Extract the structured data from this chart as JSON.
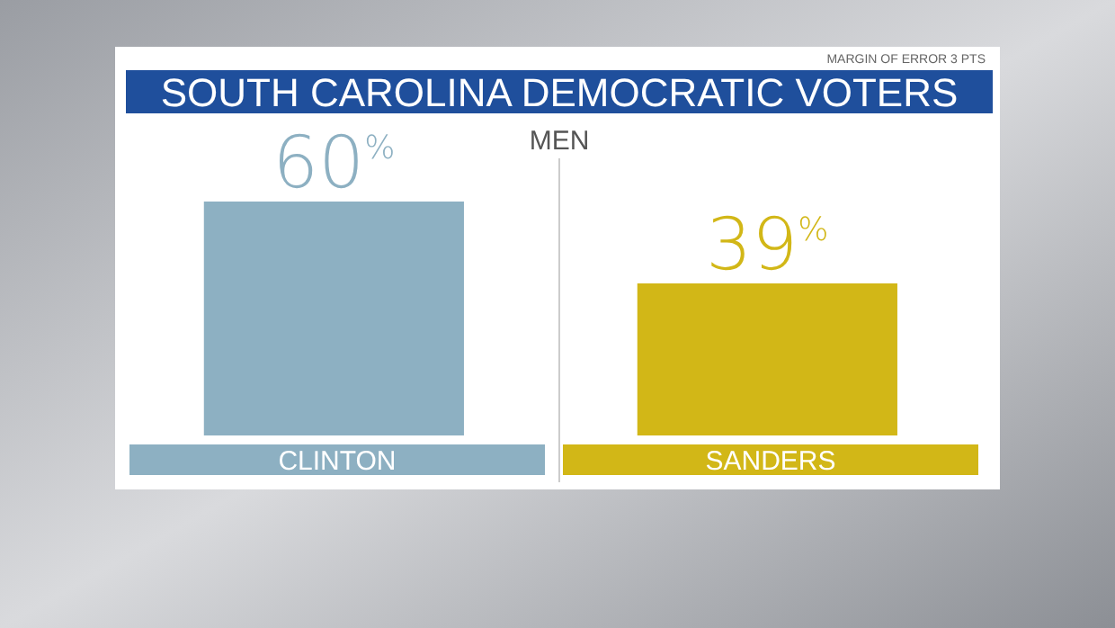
{
  "chart_data": {
    "type": "bar",
    "title": "SOUTH CAROLINA DEMOCRATIC VOTERS",
    "subtitle": "MEN",
    "categories": [
      "CLINTON",
      "SANDERS"
    ],
    "values": [
      60,
      39
    ],
    "colors": [
      "#8db0c2",
      "#d2b717"
    ],
    "value_labels": [
      "60$^{%}$",
      "39$^{%}$"
    ],
    "annotations": [
      "MARGIN OF ERROR 3 PTS"
    ]
  }
}
